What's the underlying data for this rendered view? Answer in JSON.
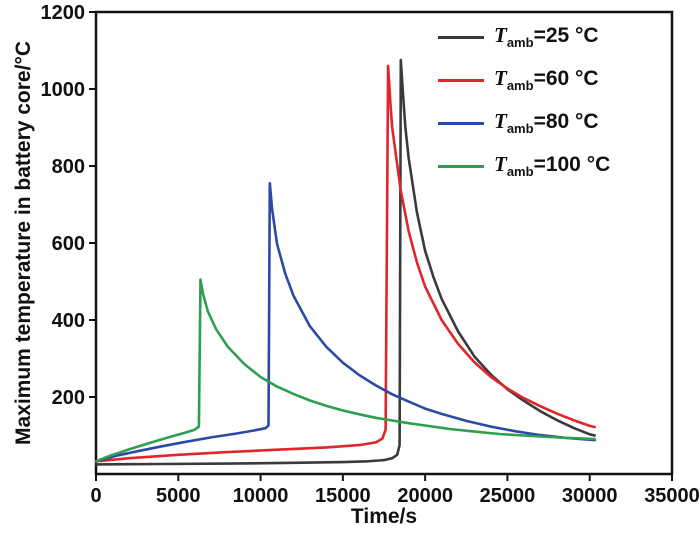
{
  "chart_data": {
    "type": "line",
    "title": "",
    "xlabel": "Time/s",
    "ylabel": "Maximum temperature in battery core/°C",
    "xlim": [
      0,
      35000
    ],
    "ylim": [
      0,
      1200
    ],
    "xticks": [
      0,
      5000,
      10000,
      15000,
      20000,
      25000,
      30000,
      35000
    ],
    "yticks": [
      200,
      400,
      600,
      800,
      1000,
      1200
    ],
    "grid": false,
    "legend_position": "top-right-inside",
    "axis_color": "#111111",
    "background_color": "#ffffff",
    "series": [
      {
        "name": "T_amb=25 °C",
        "color": "#3a3a3a",
        "legend": {
          "var": "T",
          "sub": "amb",
          "rest": "=25 °C"
        },
        "peak": {
          "time_s": 18520,
          "temp_c": 1075
        },
        "points": [
          [
            0,
            25
          ],
          [
            4000,
            26
          ],
          [
            8000,
            27
          ],
          [
            12000,
            29
          ],
          [
            15000,
            31
          ],
          [
            16500,
            33
          ],
          [
            17500,
            36
          ],
          [
            18000,
            41
          ],
          [
            18300,
            50
          ],
          [
            18450,
            75
          ],
          [
            18520,
            1075
          ],
          [
            18650,
            990
          ],
          [
            18800,
            900
          ],
          [
            19000,
            820
          ],
          [
            19500,
            680
          ],
          [
            20000,
            580
          ],
          [
            20500,
            512
          ],
          [
            21000,
            455
          ],
          [
            22000,
            370
          ],
          [
            23000,
            305
          ],
          [
            24000,
            258
          ],
          [
            25000,
            220
          ],
          [
            26000,
            190
          ],
          [
            27000,
            163
          ],
          [
            28000,
            140
          ],
          [
            29000,
            120
          ],
          [
            30000,
            103
          ],
          [
            30300,
            100
          ]
        ]
      },
      {
        "name": "T_amb=60 °C",
        "color": "#e0262a",
        "legend": {
          "var": "T",
          "sub": "amb",
          "rest": "=60 °C"
        },
        "peak": {
          "time_s": 17750,
          "temp_c": 1060
        },
        "points": [
          [
            0,
            33
          ],
          [
            2000,
            41
          ],
          [
            5000,
            50
          ],
          [
            8000,
            57
          ],
          [
            11000,
            63
          ],
          [
            14000,
            69
          ],
          [
            16000,
            75
          ],
          [
            17000,
            82
          ],
          [
            17400,
            92
          ],
          [
            17600,
            115
          ],
          [
            17750,
            1060
          ],
          [
            17900,
            955
          ],
          [
            18000,
            900
          ],
          [
            18500,
            740
          ],
          [
            19000,
            630
          ],
          [
            19500,
            550
          ],
          [
            20000,
            487
          ],
          [
            21000,
            400
          ],
          [
            22000,
            338
          ],
          [
            23000,
            290
          ],
          [
            24000,
            252
          ],
          [
            25000,
            222
          ],
          [
            26000,
            197
          ],
          [
            27000,
            176
          ],
          [
            28000,
            157
          ],
          [
            29000,
            140
          ],
          [
            30000,
            125
          ],
          [
            30300,
            122
          ]
        ]
      },
      {
        "name": "T_amb=80 °C",
        "color": "#2b4aa5",
        "legend": {
          "var": "T",
          "sub": "amb",
          "rest": "=80 °C"
        },
        "peak": {
          "time_s": 10560,
          "temp_c": 755
        },
        "points": [
          [
            0,
            33
          ],
          [
            1200,
            47
          ],
          [
            2500,
            59
          ],
          [
            4000,
            72
          ],
          [
            5500,
            84
          ],
          [
            7000,
            95
          ],
          [
            8500,
            105
          ],
          [
            9600,
            113
          ],
          [
            10300,
            119
          ],
          [
            10480,
            126
          ],
          [
            10560,
            755
          ],
          [
            10700,
            688
          ],
          [
            11000,
            598
          ],
          [
            11500,
            520
          ],
          [
            12000,
            463
          ],
          [
            13000,
            384
          ],
          [
            14000,
            330
          ],
          [
            15000,
            289
          ],
          [
            16000,
            257
          ],
          [
            17000,
            230
          ],
          [
            18000,
            207
          ],
          [
            19000,
            188
          ],
          [
            20000,
            170
          ],
          [
            21000,
            156
          ],
          [
            22500,
            138
          ],
          [
            24000,
            123
          ],
          [
            25500,
            111
          ],
          [
            27000,
            101
          ],
          [
            28500,
            94
          ],
          [
            30000,
            89
          ],
          [
            30300,
            88
          ]
        ]
      },
      {
        "name": "T_amb=100 °C",
        "color": "#2e9e50",
        "legend": {
          "var": "T",
          "sub": "amb",
          "rest": "=100 °C"
        },
        "peak": {
          "time_s": 6350,
          "temp_c": 505
        },
        "points": [
          [
            0,
            33
          ],
          [
            900,
            48
          ],
          [
            2000,
            64
          ],
          [
            3200,
            80
          ],
          [
            4400,
            95
          ],
          [
            5400,
            107
          ],
          [
            6000,
            115
          ],
          [
            6250,
            123
          ],
          [
            6350,
            505
          ],
          [
            6500,
            468
          ],
          [
            6800,
            422
          ],
          [
            7300,
            376
          ],
          [
            8000,
            331
          ],
          [
            9000,
            286
          ],
          [
            10000,
            252
          ],
          [
            11000,
            227
          ],
          [
            12000,
            208
          ],
          [
            13000,
            191
          ],
          [
            14000,
            177
          ],
          [
            15000,
            165
          ],
          [
            16000,
            155
          ],
          [
            17000,
            146
          ],
          [
            18000,
            139
          ],
          [
            19000,
            132
          ],
          [
            20000,
            126
          ],
          [
            21500,
            117
          ],
          [
            23000,
            110
          ],
          [
            24500,
            104
          ],
          [
            26000,
            100
          ],
          [
            27500,
            96
          ],
          [
            29000,
            93
          ],
          [
            30300,
            91
          ]
        ]
      }
    ]
  }
}
